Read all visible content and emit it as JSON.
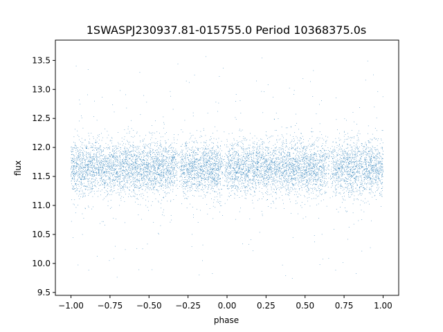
{
  "chart_data": {
    "type": "scatter",
    "title": "1SWASPJ230937.81-015755.0 Period 10368375.0s",
    "xlabel": "phase",
    "ylabel": "flux",
    "xlim": [
      -1.1,
      1.1
    ],
    "ylim": [
      9.45,
      13.85
    ],
    "x_ticks": [
      -1.0,
      -0.75,
      -0.5,
      -0.25,
      0.0,
      0.25,
      0.5,
      0.75,
      1.0
    ],
    "x_tick_labels": [
      "−1.00",
      "−0.75",
      "−0.50",
      "−0.25",
      "0.00",
      "0.25",
      "0.50",
      "0.75",
      "1.00"
    ],
    "y_ticks": [
      9.5,
      10.0,
      10.5,
      11.0,
      11.5,
      12.0,
      12.5,
      13.0,
      13.5
    ],
    "y_tick_labels": [
      "9.5",
      "10.0",
      "10.5",
      "11.0",
      "11.5",
      "12.0",
      "12.5",
      "13.0",
      "13.5"
    ],
    "grid": false,
    "marker_color": "#1f77b4",
    "series": [
      {
        "phase_range": [
          -1.0,
          1.0
        ],
        "flux_center": 11.65,
        "flux_core_spread": [
          11.15,
          12.1
        ],
        "flux_outlier_range": [
          9.7,
          13.6
        ]
      }
    ]
  }
}
